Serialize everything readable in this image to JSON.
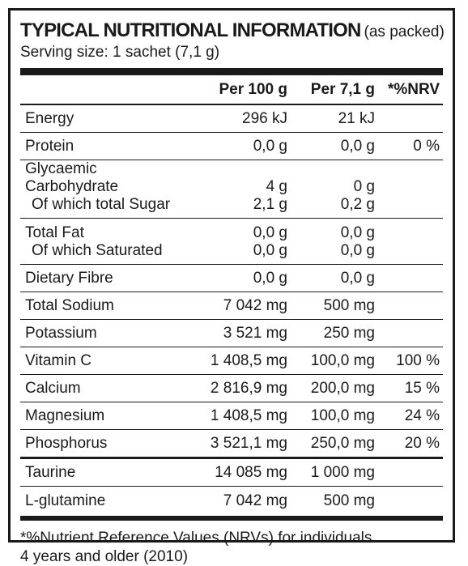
{
  "title": {
    "main": "TYPICAL NUTRITIONAL INFORMATION",
    "sub": "(as packed)"
  },
  "serving": "Serving size: 1 sachet (7,1 g)",
  "columns": [
    "",
    "Per 100 g",
    "Per 7,1 g",
    "*%NRV"
  ],
  "rows": {
    "energy": {
      "name": "Energy",
      "per100": "296 kJ",
      "perServ": "21 kJ",
      "nrv": ""
    },
    "protein": {
      "name": "Protein",
      "per100": "0,0 g",
      "perServ": "0,0 g",
      "nrv": "0 %"
    },
    "carb": {
      "name": "Glycaemic Carbohydrate",
      "per100": "4 g",
      "perServ": "0 g",
      "nrv": ""
    },
    "sugar": {
      "name": "Of which total Sugar",
      "per100": "2,1 g",
      "perServ": "0,2 g",
      "nrv": ""
    },
    "fat": {
      "name": "Total Fat",
      "per100": "0,0 g",
      "perServ": "0,0 g",
      "nrv": ""
    },
    "satfat": {
      "name": "Of which Saturated",
      "per100": "0,0 g",
      "perServ": "0,0 g",
      "nrv": ""
    },
    "fibre": {
      "name": "Dietary Fibre",
      "per100": "0,0 g",
      "perServ": "0,0 g",
      "nrv": ""
    },
    "sodium": {
      "name": "Total Sodium",
      "per100": "7 042 mg",
      "perServ": "500 mg",
      "nrv": ""
    },
    "potassium": {
      "name": "Potassium",
      "per100": "3 521 mg",
      "perServ": "250 mg",
      "nrv": ""
    },
    "vitc": {
      "name": "Vitamin C",
      "per100": "1 408,5 mg",
      "perServ": "100,0 mg",
      "nrv": "100 %"
    },
    "calcium": {
      "name": "Calcium",
      "per100": "2 816,9 mg",
      "perServ": "200,0 mg",
      "nrv": "15 %"
    },
    "magnesium": {
      "name": "Magnesium",
      "per100": "1 408,5 mg",
      "perServ": "100,0 mg",
      "nrv": "24 %"
    },
    "phosphorus": {
      "name": "Phosphorus",
      "per100": "3 521,1 mg",
      "perServ": "250,0 mg",
      "nrv": "20 %"
    },
    "taurine": {
      "name": "Taurine",
      "per100": "14 085 mg",
      "perServ": "1 000 mg",
      "nrv": ""
    },
    "glutamine": {
      "name": "L-glutamine",
      "per100": "7 042 mg",
      "perServ": "500 mg",
      "nrv": ""
    }
  },
  "footnote": {
    "line1": "*%Nutrient Reference Values (NRVs) for individuals",
    "line2": "4 years and older (2010)"
  }
}
